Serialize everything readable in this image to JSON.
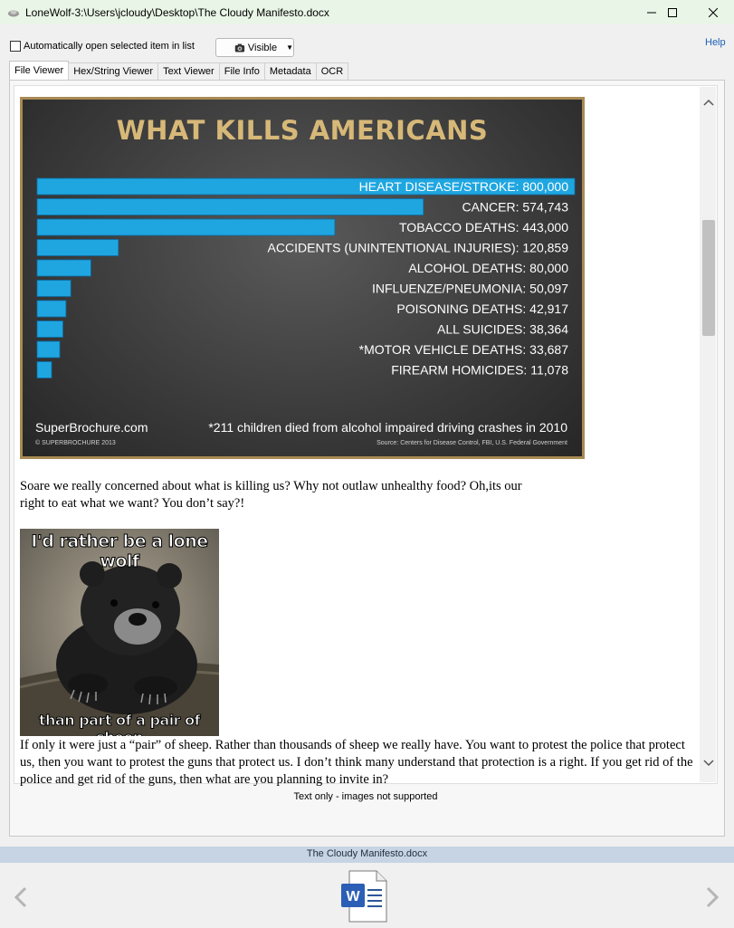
{
  "window": {
    "title": "LoneWolf-3:\\Users\\jcloudy\\Desktop\\The Cloudy Manifesto.docx"
  },
  "toolbar": {
    "auto_open_label": "Automatically open selected item in list",
    "visible_label": "Visible",
    "help_label": "Help"
  },
  "tabs": [
    "File Viewer",
    "Hex/String Viewer",
    "Text Viewer",
    "File Info",
    "Metadata",
    "OCR"
  ],
  "document": {
    "paragraph1": "Soare we really concerned about what is killing us? Why not outlaw unhealthy food? Oh,its our right to eat what we want? You don’t say?!",
    "paragraph2": "If only it were just a “pair” of sheep. Rather than thousands of sheep we really have. You want to protest the police that protect us, then you want to protest the guns that protect us. I don’t think many understand that protection is a right. If you get rid of the police and get rid of the guns, then what are you planning to invite in?",
    "meme_top": "I'd rather be a lone wolf",
    "meme_bottom": "than part of a pair of sheep"
  },
  "chart_data": {
    "type": "bar",
    "title": "WHAT KILLS AMERICANS",
    "orientation": "horizontal",
    "bar_color": "#1fa6e0",
    "categories": [
      "HEART DISEASE/STROKE",
      "CANCER",
      "TOBACCO DEATHS",
      "ACCIDENTS (UNINTENTIONAL INJURIES)",
      "ALCOHOL DEATHS",
      "INFLUENZE/PNEUMONIA",
      "POISONING DEATHS",
      "ALL SUICIDES",
      "*MOTOR VEHICLE DEATHS",
      "FIREARM HOMICIDES"
    ],
    "values": [
      800000,
      574743,
      443000,
      120859,
      80000,
      50097,
      42917,
      38364,
      33687,
      11078
    ],
    "labels": [
      "HEART DISEASE/STROKE: 800,000",
      "CANCER: 574,743",
      "TOBACCO DEATHS: 443,000",
      "ACCIDENTS (UNINTENTIONAL INJURIES): 120,859",
      "ALCOHOL DEATHS: 80,000",
      "INFLUENZE/PNEUMONIA: 50,097",
      "POISONING DEATHS: 42,917",
      "ALL SUICIDES: 38,364",
      "*MOTOR VEHICLE DEATHS: 33,687",
      "FIREARM HOMICIDES: 11,078"
    ],
    "footer_left": "SuperBrochure.com",
    "footer_left_small": "© SUPERBROCHURE 2013",
    "footer_right": "*211 children died from alcohol impaired driving crashes in 2010",
    "footer_right_small": "Source: Centers for Disease Control, FBI, U.S. Federal Government"
  },
  "viewer": {
    "status": "Text only - images not supported",
    "scroll_position": 0.2
  },
  "footer": {
    "filename": "The Cloudy Manifesto.docx"
  }
}
